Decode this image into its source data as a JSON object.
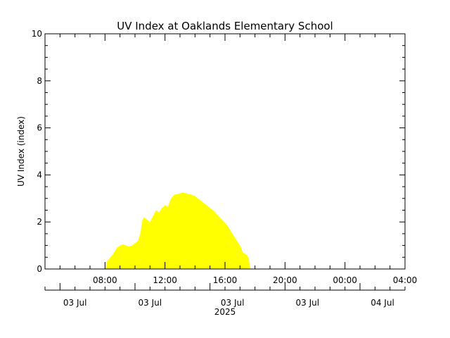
{
  "colors": {
    "background": "#ffffff",
    "axis": "#000000",
    "fill": "#ffff00"
  },
  "chart_data": {
    "type": "area",
    "title": "UV Index at Oaklands Elementary School",
    "ylabel": "UV Index (index)",
    "xlabel": "",
    "ylim": [
      0,
      10
    ],
    "yticks": [
      "0",
      "2",
      "4",
      "6",
      "8",
      "10"
    ],
    "xlim_hours": [
      4,
      28
    ],
    "time_ticks": [
      {
        "hour": 8,
        "label": "08:00"
      },
      {
        "hour": 12,
        "label": "12:00"
      },
      {
        "hour": 16,
        "label": "16:00"
      },
      {
        "hour": 20,
        "label": "20:00"
      },
      {
        "hour": 24,
        "label": "00:00"
      },
      {
        "hour": 28,
        "label": "04:00"
      }
    ],
    "date_ticks": [
      {
        "hour": 6,
        "label": "03 Jul"
      },
      {
        "hour": 11,
        "label": "03 Jul"
      },
      {
        "hour": 16.5,
        "label": "03 Jul"
      },
      {
        "hour": 21.5,
        "label": "03 Jul"
      },
      {
        "hour": 26.5,
        "label": "04 Jul"
      }
    ],
    "year_label": "2025",
    "series": [
      {
        "points": [
          [
            8.05,
            0.0
          ],
          [
            8.1,
            0.3
          ],
          [
            8.3,
            0.45
          ],
          [
            8.5,
            0.6
          ],
          [
            8.8,
            0.9
          ],
          [
            9.0,
            1.0
          ],
          [
            9.2,
            1.05
          ],
          [
            9.4,
            1.0
          ],
          [
            9.6,
            0.95
          ],
          [
            9.8,
            1.0
          ],
          [
            10.0,
            1.1
          ],
          [
            10.2,
            1.2
          ],
          [
            10.35,
            1.5
          ],
          [
            10.5,
            2.1
          ],
          [
            10.6,
            2.2
          ],
          [
            10.8,
            2.1
          ],
          [
            11.0,
            2.0
          ],
          [
            11.2,
            2.25
          ],
          [
            11.4,
            2.5
          ],
          [
            11.6,
            2.4
          ],
          [
            11.8,
            2.6
          ],
          [
            12.0,
            2.7
          ],
          [
            12.2,
            2.65
          ],
          [
            12.4,
            3.0
          ],
          [
            12.6,
            3.15
          ],
          [
            12.9,
            3.2
          ],
          [
            13.2,
            3.25
          ],
          [
            13.5,
            3.2
          ],
          [
            13.8,
            3.15
          ],
          [
            14.0,
            3.1
          ],
          [
            14.3,
            2.95
          ],
          [
            14.6,
            2.8
          ],
          [
            14.9,
            2.65
          ],
          [
            15.2,
            2.5
          ],
          [
            15.5,
            2.3
          ],
          [
            15.8,
            2.1
          ],
          [
            16.1,
            1.9
          ],
          [
            16.4,
            1.6
          ],
          [
            16.7,
            1.3
          ],
          [
            17.0,
            1.0
          ],
          [
            17.2,
            0.7
          ],
          [
            17.45,
            0.6
          ],
          [
            17.6,
            0.45
          ],
          [
            17.65,
            0.0
          ]
        ]
      }
    ]
  }
}
